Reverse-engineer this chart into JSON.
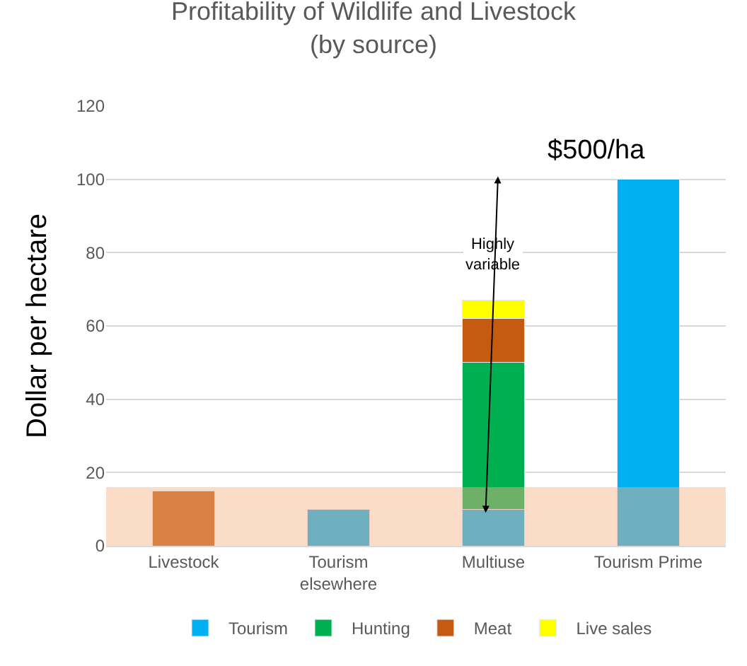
{
  "chart_data": {
    "type": "bar",
    "title": "Profitability of Wildlife and Livestock (by source)",
    "ylabel": "Dollar per hectare",
    "categories": [
      "Livestock",
      "Tourism elsewhere",
      "Multiuse",
      "Tourism Prime"
    ],
    "stacked": true,
    "series": [
      {
        "name": "Tourism",
        "color": "#00b0f0",
        "values": [
          null,
          10,
          10,
          100
        ]
      },
      {
        "name": "Hunting",
        "color": "#00b050",
        "values": [
          null,
          null,
          40,
          null
        ]
      },
      {
        "name": "Meat",
        "color": "#c55a11",
        "values": [
          15,
          null,
          12,
          null
        ]
      },
      {
        "name": "Live sales",
        "color": "#ffff00",
        "values": [
          null,
          null,
          5,
          null
        ]
      }
    ],
    "ylim": [
      0,
      120
    ],
    "yticks": [
      0,
      20,
      40,
      60,
      80,
      100,
      120
    ],
    "grid": "y",
    "legend": "bottom",
    "bands": [
      {
        "axis": "y",
        "from": 0,
        "to": 16,
        "color": "#f4b183"
      }
    ],
    "annotations": [
      "$500/ha",
      "Highly variable"
    ]
  }
}
